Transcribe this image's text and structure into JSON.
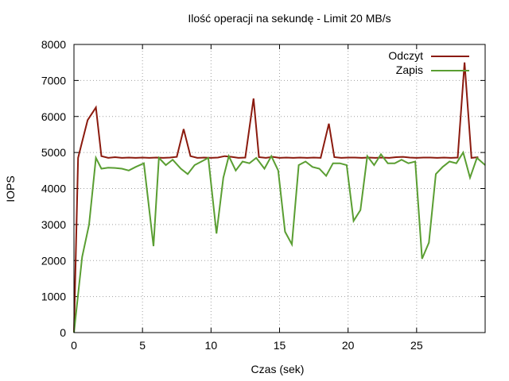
{
  "chart_data": {
    "type": "line",
    "title": "Ilość operacji na sekundę - Limit 20 MB/s",
    "xlabel": "Czas (sek)",
    "ylabel": "IOPS",
    "xlim": [
      0,
      30
    ],
    "ylim": [
      0,
      8000
    ],
    "x_ticks": [
      0,
      5,
      10,
      15,
      20,
      25
    ],
    "y_ticks": [
      0,
      1000,
      2000,
      3000,
      4000,
      5000,
      6000,
      7000,
      8000
    ],
    "grid": true,
    "legend_position": "top-right",
    "series": [
      {
        "name": "Odczyt",
        "color": "#8b1a0e",
        "points": [
          [
            0,
            0
          ],
          [
            0.3,
            4850
          ],
          [
            0.6,
            5300
          ],
          [
            1.0,
            5900
          ],
          [
            1.6,
            6250
          ],
          [
            2.0,
            4900
          ],
          [
            2.5,
            4850
          ],
          [
            3.0,
            4870
          ],
          [
            3.5,
            4850
          ],
          [
            4.0,
            4860
          ],
          [
            4.5,
            4850
          ],
          [
            5.0,
            4860
          ],
          [
            5.5,
            4850
          ],
          [
            6.0,
            4860
          ],
          [
            6.5,
            4850
          ],
          [
            7.0,
            4860
          ],
          [
            7.5,
            4880
          ],
          [
            8.0,
            5650
          ],
          [
            8.5,
            4900
          ],
          [
            9.0,
            4850
          ],
          [
            9.5,
            4860
          ],
          [
            10.0,
            4850
          ],
          [
            10.5,
            4860
          ],
          [
            11.0,
            4900
          ],
          [
            11.5,
            4880
          ],
          [
            12.0,
            4850
          ],
          [
            12.5,
            4860
          ],
          [
            13.1,
            6500
          ],
          [
            13.5,
            4870
          ],
          [
            14.0,
            4850
          ],
          [
            14.5,
            4880
          ],
          [
            15.0,
            4850
          ],
          [
            15.5,
            4860
          ],
          [
            16.0,
            4850
          ],
          [
            16.5,
            4860
          ],
          [
            17.0,
            4850
          ],
          [
            17.5,
            4860
          ],
          [
            18.0,
            4850
          ],
          [
            18.6,
            5800
          ],
          [
            19.0,
            4870
          ],
          [
            19.5,
            4850
          ],
          [
            20.0,
            4860
          ],
          [
            20.5,
            4860
          ],
          [
            21.0,
            4850
          ],
          [
            21.5,
            4860
          ],
          [
            22.0,
            4850
          ],
          [
            22.5,
            4860
          ],
          [
            23.0,
            4850
          ],
          [
            23.5,
            4870
          ],
          [
            24.0,
            4880
          ],
          [
            24.5,
            4860
          ],
          [
            25.0,
            4850
          ],
          [
            25.5,
            4860
          ],
          [
            26.0,
            4860
          ],
          [
            26.5,
            4850
          ],
          [
            27.0,
            4860
          ],
          [
            27.5,
            4850
          ],
          [
            28.0,
            4860
          ],
          [
            28.5,
            7500
          ],
          [
            29.0,
            4850
          ],
          [
            29.5,
            4870
          ]
        ]
      },
      {
        "name": "Zapis",
        "color": "#5a9e32",
        "points": [
          [
            0,
            0
          ],
          [
            0.6,
            2100
          ],
          [
            1.1,
            3000
          ],
          [
            1.6,
            4850
          ],
          [
            2.0,
            4550
          ],
          [
            2.5,
            4580
          ],
          [
            3.0,
            4570
          ],
          [
            3.5,
            4550
          ],
          [
            4.0,
            4500
          ],
          [
            4.5,
            4600
          ],
          [
            5.1,
            4700
          ],
          [
            5.8,
            2400
          ],
          [
            6.2,
            4850
          ],
          [
            6.7,
            4650
          ],
          [
            7.2,
            4800
          ],
          [
            7.8,
            4550
          ],
          [
            8.3,
            4400
          ],
          [
            8.8,
            4650
          ],
          [
            9.3,
            4750
          ],
          [
            9.8,
            4850
          ],
          [
            10.4,
            2750
          ],
          [
            10.9,
            4300
          ],
          [
            11.3,
            4900
          ],
          [
            11.8,
            4500
          ],
          [
            12.3,
            4750
          ],
          [
            12.8,
            4700
          ],
          [
            13.3,
            4850
          ],
          [
            13.9,
            4550
          ],
          [
            14.4,
            4900
          ],
          [
            14.9,
            4500
          ],
          [
            15.4,
            2800
          ],
          [
            15.9,
            2450
          ],
          [
            16.4,
            4650
          ],
          [
            16.9,
            4750
          ],
          [
            17.4,
            4600
          ],
          [
            17.9,
            4550
          ],
          [
            18.4,
            4350
          ],
          [
            18.9,
            4700
          ],
          [
            19.4,
            4700
          ],
          [
            19.9,
            4650
          ],
          [
            20.4,
            3100
          ],
          [
            20.9,
            3400
          ],
          [
            21.4,
            4900
          ],
          [
            21.9,
            4650
          ],
          [
            22.4,
            4950
          ],
          [
            22.9,
            4700
          ],
          [
            23.4,
            4700
          ],
          [
            23.9,
            4800
          ],
          [
            24.4,
            4700
          ],
          [
            24.9,
            4750
          ],
          [
            25.4,
            2050
          ],
          [
            25.9,
            2500
          ],
          [
            26.4,
            4400
          ],
          [
            26.9,
            4600
          ],
          [
            27.4,
            4750
          ],
          [
            27.9,
            4700
          ],
          [
            28.4,
            5000
          ],
          [
            28.9,
            4300
          ],
          [
            29.4,
            4850
          ],
          [
            30.0,
            4650
          ]
        ]
      }
    ]
  }
}
